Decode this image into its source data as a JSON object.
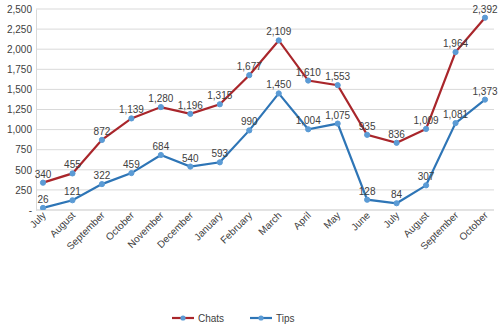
{
  "chart_data": {
    "type": "line",
    "categories": [
      "July",
      "August",
      "September",
      "October",
      "November",
      "December",
      "January",
      "February",
      "March",
      "April",
      "May",
      "June",
      "July",
      "August",
      "September",
      "October"
    ],
    "series": [
      {
        "name": "Chats",
        "color": "#a9262b",
        "marker": "circle",
        "values": [
          340,
          455,
          872,
          1139,
          1280,
          1196,
          1315,
          1677,
          2109,
          1610,
          1553,
          935,
          836,
          1009,
          1964,
          2392
        ],
        "value_labels": [
          "340",
          "455",
          "872",
          "1,139",
          "1,280",
          "1,196",
          "1,315",
          "1,677",
          "2,109",
          "1,610",
          "1,553",
          "935",
          "836",
          "1,009",
          "1,964",
          "2,392"
        ]
      },
      {
        "name": "Tips",
        "color": "#2e75b6",
        "marker": "circle",
        "values": [
          26,
          121,
          322,
          459,
          684,
          540,
          593,
          990,
          1450,
          1004,
          1075,
          128,
          84,
          307,
          1081,
          1373
        ],
        "value_labels": [
          "26",
          "121",
          "322",
          "459",
          "684",
          "540",
          "593",
          "990",
          "1,450",
          "1,004",
          "1,075",
          "128",
          "84",
          "307",
          "1,081",
          "1,373"
        ]
      }
    ],
    "ylim": [
      0,
      2500
    ],
    "yticks": [
      {
        "value": 0,
        "label": "-"
      },
      250,
      500,
      750,
      {
        "value": 1000,
        "label": "1,000"
      },
      {
        "value": 1250,
        "label": "1,250"
      },
      {
        "value": 1500,
        "label": "1,500"
      },
      {
        "value": 1750,
        "label": "1,750"
      },
      {
        "value": 2000,
        "label": "2,000"
      },
      {
        "value": 2250,
        "label": "2,250"
      },
      {
        "value": 2500,
        "label": "2,500"
      }
    ],
    "grid": true,
    "data_labels": true,
    "legend": "bottom"
  }
}
